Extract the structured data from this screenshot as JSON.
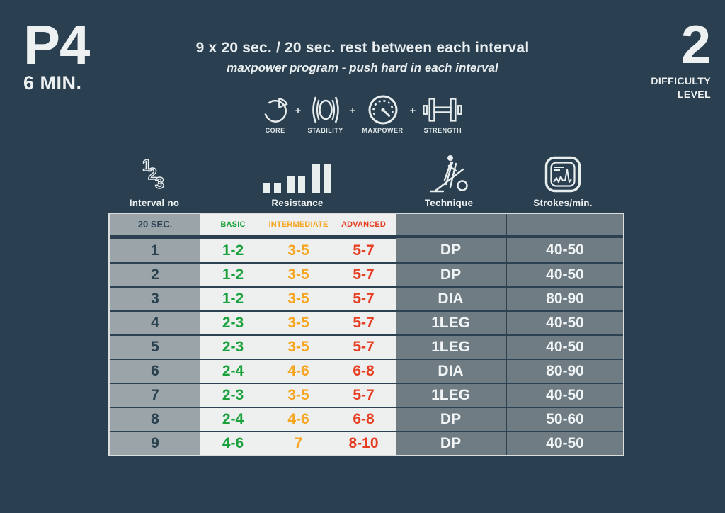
{
  "header": {
    "program_code": "P4",
    "duration": "6 MIN.",
    "title": "9 x 20 sec. / 20 sec. rest between each interval",
    "subtitle": "maxpower program - push hard in each interval",
    "badge_separator": "+",
    "badges": [
      {
        "label": "CORE",
        "icon": "core-icon"
      },
      {
        "label": "STABILITY",
        "icon": "stability-icon"
      },
      {
        "label": "MAXPOWER",
        "icon": "maxpower-gauge-icon"
      },
      {
        "label": "STRENGTH",
        "icon": "strength-dumbbell-icon"
      }
    ],
    "difficulty": {
      "value": "2",
      "label_line1": "DIFFICULTY",
      "label_line2": "LEVEL"
    }
  },
  "columns": [
    {
      "label": "Interval no",
      "icon": "numbers-123-icon"
    },
    {
      "label": "Resistance",
      "icon": "resistance-bars-icon"
    },
    {
      "label": "Technique",
      "icon": "skier-icon"
    },
    {
      "label": "Strokes/min.",
      "icon": "stroke-monitor-icon"
    }
  ],
  "table": {
    "header": {
      "interval": "20 SEC.",
      "levels": [
        "BASIC",
        "INTERMEDIATE",
        "ADVANCED"
      ]
    },
    "rows": [
      {
        "interval": "1",
        "basic": "1-2",
        "intermediate": "3-5",
        "advanced": "5-7",
        "technique": "DP",
        "strokes": "40-50"
      },
      {
        "interval": "2",
        "basic": "1-2",
        "intermediate": "3-5",
        "advanced": "5-7",
        "technique": "DP",
        "strokes": "40-50"
      },
      {
        "interval": "3",
        "basic": "1-2",
        "intermediate": "3-5",
        "advanced": "5-7",
        "technique": "DIA",
        "strokes": "80-90"
      },
      {
        "interval": "4",
        "basic": "2-3",
        "intermediate": "3-5",
        "advanced": "5-7",
        "technique": "1LEG",
        "strokes": "40-50"
      },
      {
        "interval": "5",
        "basic": "2-3",
        "intermediate": "3-5",
        "advanced": "5-7",
        "technique": "1LEG",
        "strokes": "40-50"
      },
      {
        "interval": "6",
        "basic": "2-4",
        "intermediate": "4-6",
        "advanced": "6-8",
        "technique": "DIA",
        "strokes": "80-90"
      },
      {
        "interval": "7",
        "basic": "2-3",
        "intermediate": "3-5",
        "advanced": "5-7",
        "technique": "1LEG",
        "strokes": "40-50"
      },
      {
        "interval": "8",
        "basic": "2-4",
        "intermediate": "4-6",
        "advanced": "6-8",
        "technique": "DP",
        "strokes": "50-60"
      },
      {
        "interval": "9",
        "basic": "4-6",
        "intermediate": "7",
        "advanced": "8-10",
        "technique": "DP",
        "strokes": "40-50"
      }
    ]
  },
  "colors": {
    "background": "#2a3f4f",
    "interval_column": "#9ba5a9",
    "level_columns": "#eef0ef",
    "technique_columns": "#6f7c84",
    "basic_green": "#1aa13c",
    "intermediate_orange": "#f7a41f",
    "advanced_red": "#e63c20",
    "text_light": "#eef1f1",
    "text_dark": "#29404f"
  }
}
